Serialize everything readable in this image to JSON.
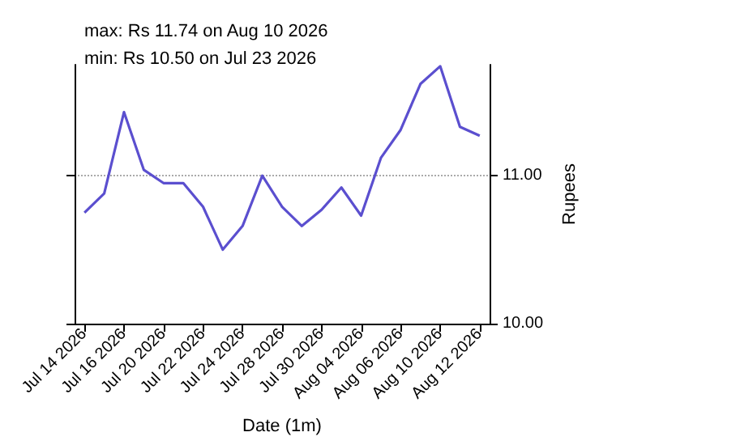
{
  "chart_data": {
    "type": "line",
    "annotations": [
      "max: Rs 11.74 on Aug 10 2026",
      "min: Rs 10.50 on Jul 23 2026"
    ],
    "xlabel": "Date (1m)",
    "ylabel": "Rupees",
    "categories": [
      "Jul 14 2026",
      null,
      "Jul 16 2026",
      null,
      "Jul 20 2026",
      null,
      "Jul 22 2026",
      null,
      "Jul 24 2026",
      null,
      "Jul 28 2026",
      null,
      "Jul 30 2026",
      null,
      "Aug 04 2026",
      null,
      "Aug 06 2026",
      null,
      "Aug 10 2026",
      null,
      "Aug 12 2026"
    ],
    "series": [
      {
        "color": "#5b4fcf",
        "values": [
          10.75,
          10.88,
          11.43,
          11.04,
          10.95,
          10.95,
          10.79,
          10.5,
          10.66,
          11.0,
          10.79,
          10.66,
          10.77,
          10.92,
          10.73,
          11.12,
          11.31,
          11.62,
          11.74,
          11.33,
          11.27
        ]
      }
    ],
    "ylim": [
      10,
      11.75
    ],
    "yticks": [
      {
        "value": 10,
        "label": "10.00"
      },
      {
        "value": 11,
        "label": "11.00"
      }
    ],
    "grid": "y",
    "marker": "none",
    "line_style": "solid"
  }
}
